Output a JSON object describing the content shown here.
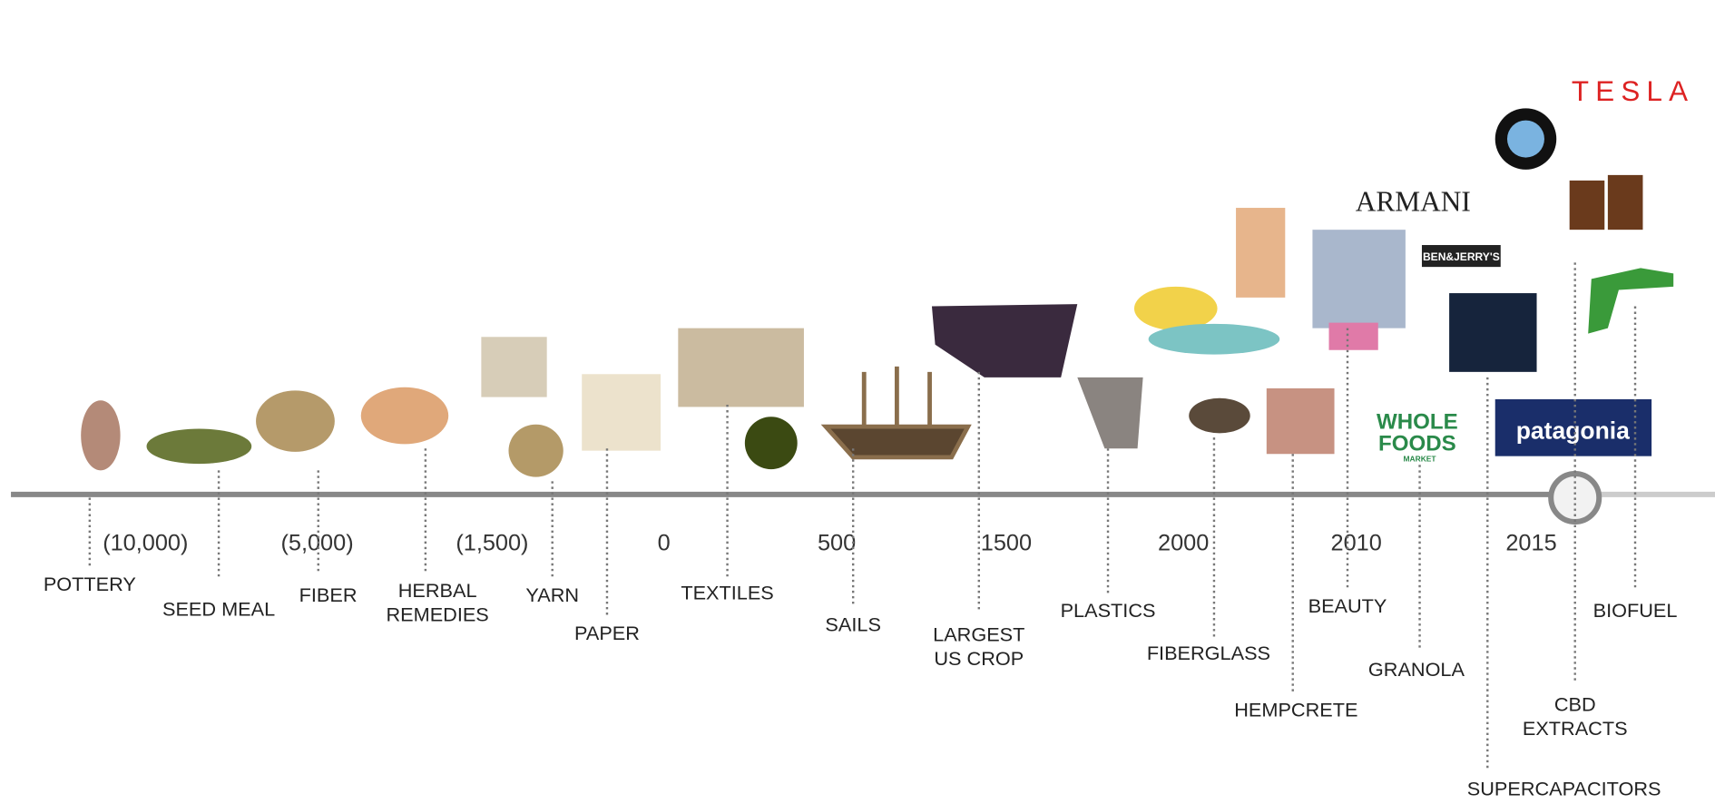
{
  "years": [
    "(10,000)",
    "(5,000)",
    "(1,500)",
    "0",
    "500",
    "1500",
    "2000",
    "2010",
    "2015"
  ],
  "items": [
    {
      "label": [
        "POTTERY"
      ]
    },
    {
      "label": [
        "SEED MEAL"
      ]
    },
    {
      "label": [
        "FIBER"
      ]
    },
    {
      "label": [
        "HERBAL",
        "REMEDIES"
      ]
    },
    {
      "label": [
        "YARN"
      ]
    },
    {
      "label": [
        "PAPER"
      ]
    },
    {
      "label": [
        "TEXTILES"
      ]
    },
    {
      "label": [
        "SAILS"
      ]
    },
    {
      "label": [
        "LARGEST",
        "US CROP"
      ]
    },
    {
      "label": [
        "PLASTICS"
      ]
    },
    {
      "label": [
        "FIBERGLASS"
      ]
    },
    {
      "label": [
        "HEMPCRETE"
      ]
    },
    {
      "label": [
        "BEAUTY"
      ]
    },
    {
      "label": [
        "GRANOLA"
      ]
    },
    {
      "label": [
        "SUPERCAPACITORS"
      ]
    },
    {
      "label": [
        "CBD",
        "EXTRACTS"
      ]
    },
    {
      "label": [
        "BIOFUEL"
      ]
    }
  ],
  "logos": {
    "armani": "ARMANI",
    "tesla": "TESLA",
    "ben_jerrys": "BEN&JERRY'S",
    "whole_foods": [
      "WHOLE",
      "FOODS",
      "MARKET"
    ],
    "patagonia": "patagonia"
  }
}
